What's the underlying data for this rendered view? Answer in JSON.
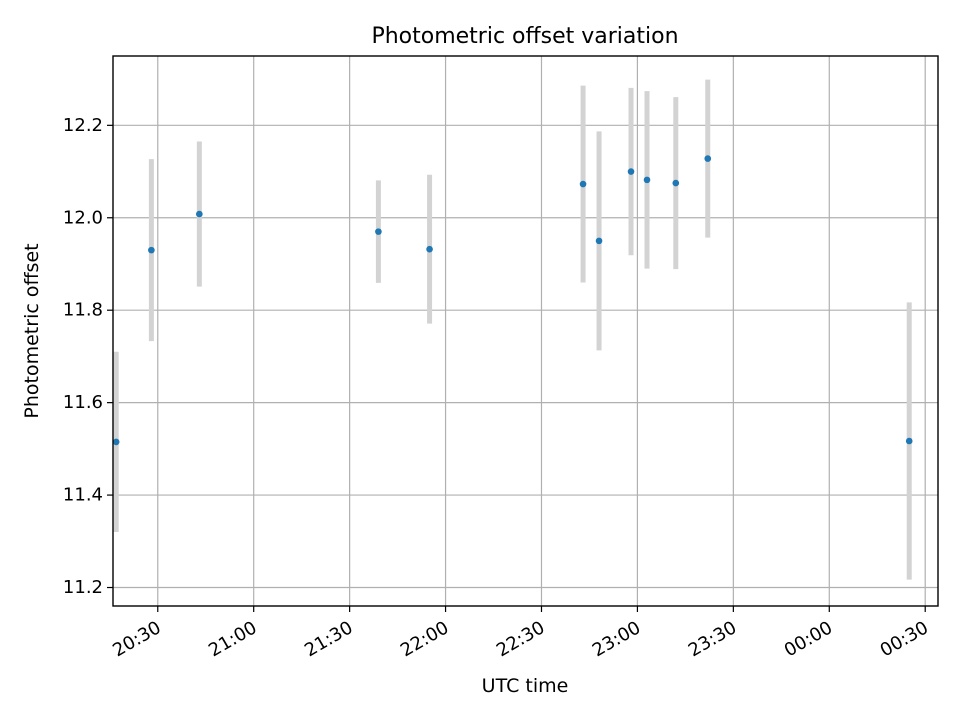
{
  "chart_data": {
    "type": "scatter",
    "title": "Photometric offset variation",
    "xlabel": "UTC time",
    "ylabel": "Photometric offset",
    "x_axis_kind": "time",
    "xlim": [
      "20:16",
      "00:34"
    ],
    "ylim": [
      11.16,
      12.35
    ],
    "grid": true,
    "x_ticks": [
      "20:30",
      "21:00",
      "21:30",
      "22:00",
      "22:30",
      "23:00",
      "23:30",
      "00:00",
      "00:30"
    ],
    "y_ticks": [
      "11.2",
      "11.4",
      "11.6",
      "11.8",
      "12.0",
      "12.2"
    ],
    "series": [
      {
        "marker_color": "#1f77b4",
        "errorbar_color": "#d3d3d3",
        "points": [
          {
            "x": "20:17",
            "y": 11.515,
            "err": 0.195
          },
          {
            "x": "20:28",
            "y": 11.93,
            "err": 0.197
          },
          {
            "x": "20:43",
            "y": 12.008,
            "err": 0.157
          },
          {
            "x": "21:39",
            "y": 11.97,
            "err": 0.111
          },
          {
            "x": "21:55",
            "y": 11.932,
            "err": 0.161
          },
          {
            "x": "22:43",
            "y": 12.073,
            "err": 0.213
          },
          {
            "x": "22:48",
            "y": 11.95,
            "err": 0.237
          },
          {
            "x": "22:58",
            "y": 12.1,
            "err": 0.181
          },
          {
            "x": "23:03",
            "y": 12.082,
            "err": 0.192
          },
          {
            "x": "23:12",
            "y": 12.075,
            "err": 0.186
          },
          {
            "x": "23:22",
            "y": 12.128,
            "err": 0.171
          },
          {
            "x": "00:25",
            "y": 11.517,
            "err": 0.3
          }
        ]
      }
    ]
  }
}
